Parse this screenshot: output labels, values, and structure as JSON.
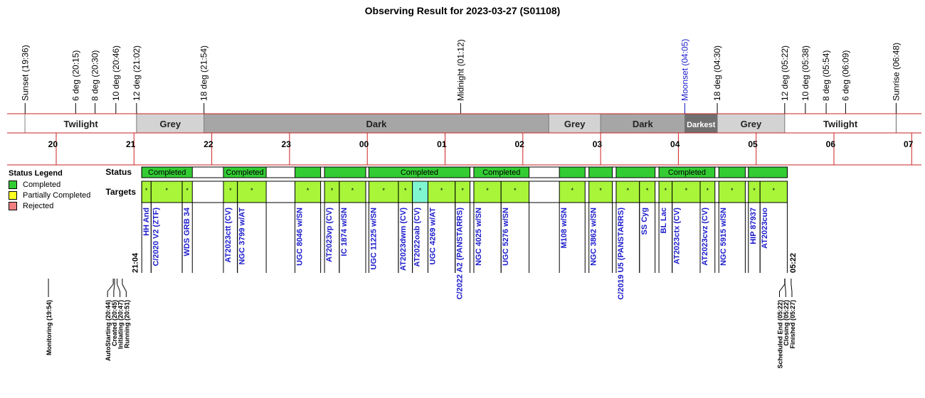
{
  "title": "Observing Result for 2023-03-27 (S01108)",
  "colors": {
    "moon": "#1a1acc",
    "red_line": "#cc2222",
    "grey": "#d3d3d3",
    "dark": "#a6a6a6",
    "darkest": "#707070",
    "completed": "#33cc33",
    "target_green": "#a8f53a",
    "target_cyan": "#7ff5d0",
    "partial": "#ffff22",
    "rejected": "#f08080",
    "target_text": "#1a1acc"
  },
  "events": [
    {
      "label": "Sunset (19:36)",
      "t": 19.6
    },
    {
      "label": "6 deg (20:15)",
      "t": 20.25
    },
    {
      "label": "8 deg (20:30)",
      "t": 20.5
    },
    {
      "label": "10 deg (20:46)",
      "t": 20.767
    },
    {
      "label": "12 deg (21:02)",
      "t": 21.033
    },
    {
      "label": "18 deg (21:54)",
      "t": 21.9
    },
    {
      "label": "Midnight (01:12)",
      "t": 25.2
    },
    {
      "label": "Moonset (04:05)",
      "t": 28.083,
      "moon": true
    },
    {
      "label": "18 deg (04:30)",
      "t": 28.5
    },
    {
      "label": "12 deg (05:22)",
      "t": 29.367
    },
    {
      "label": "10 deg (05:38)",
      "t": 29.633
    },
    {
      "label": "8 deg (05:54)",
      "t": 29.9
    },
    {
      "label": "6 deg (06:09)",
      "t": 30.15
    },
    {
      "label": "Sunrise (06:48)",
      "t": 30.8
    }
  ],
  "phases": [
    {
      "label": "Twilight",
      "t0": 19.6,
      "t1": 21.033,
      "kind": "twilight"
    },
    {
      "label": "Grey",
      "t0": 21.033,
      "t1": 21.9,
      "kind": "grey"
    },
    {
      "label": "Dark",
      "t0": 21.9,
      "t1": 26.333,
      "kind": "dark"
    },
    {
      "label": "Grey",
      "t0": 26.333,
      "t1": 27.0,
      "kind": "grey"
    },
    {
      "label": "Dark",
      "t0": 27.0,
      "t1": 28.083,
      "kind": "dark"
    },
    {
      "label": "Darkest",
      "t0": 28.083,
      "t1": 28.5,
      "kind": "darkest"
    },
    {
      "label": "Grey",
      "t0": 28.5,
      "t1": 29.367,
      "kind": "grey"
    },
    {
      "label": "Twilight",
      "t0": 29.367,
      "t1": 30.8,
      "kind": "twilight"
    }
  ],
  "hours": [
    {
      "label": "20",
      "t": 20
    },
    {
      "label": "21",
      "t": 21
    },
    {
      "label": "22",
      "t": 22
    },
    {
      "label": "23",
      "t": 23
    },
    {
      "label": "00",
      "t": 24
    },
    {
      "label": "01",
      "t": 25
    },
    {
      "label": "02",
      "t": 26
    },
    {
      "label": "03",
      "t": 27
    },
    {
      "label": "04",
      "t": 28
    },
    {
      "label": "05",
      "t": 29
    },
    {
      "label": "06",
      "t": 30
    },
    {
      "label": "07",
      "t": 31
    }
  ],
  "row_labels": {
    "status": "Status",
    "targets": "Targets"
  },
  "status_blocks": [
    {
      "t0": 21.1,
      "t1": 21.75,
      "label": "Completed"
    },
    {
      "t0": 22.15,
      "t1": 22.7,
      "label": "Completed"
    },
    {
      "t0": 23.07,
      "t1": 23.4,
      "label": ""
    },
    {
      "t0": 23.45,
      "t1": 23.98,
      "label": ""
    },
    {
      "t0": 24.02,
      "t1": 25.32,
      "label": "Completed"
    },
    {
      "t0": 25.37,
      "t1": 26.08,
      "label": "Completed"
    },
    {
      "t0": 26.47,
      "t1": 26.8,
      "label": ""
    },
    {
      "t0": 26.85,
      "t1": 27.15,
      "label": ""
    },
    {
      "t0": 27.2,
      "t1": 27.7,
      "label": ""
    },
    {
      "t0": 27.75,
      "t1": 28.47,
      "label": "Completed"
    },
    {
      "t0": 28.52,
      "t1": 28.86,
      "label": ""
    },
    {
      "t0": 28.9,
      "t1": 29.4,
      "label": ""
    }
  ],
  "targets": [
    {
      "name": "HH And",
      "t0": 21.1,
      "t1": 21.22
    },
    {
      "name": "C/2020 V2 (ZTF)",
      "t0": 21.22,
      "t1": 21.62
    },
    {
      "name": "WDS GRB 34",
      "t0": 21.62,
      "t1": 21.75
    },
    {
      "name": "AT2023ctt (CV)",
      "t0": 22.15,
      "t1": 22.33
    },
    {
      "name": "NGC 3799 w/AT",
      "t0": 22.33,
      "t1": 22.7
    },
    {
      "name": "UGC 8046 w/SN",
      "t0": 23.07,
      "t1": 23.4
    },
    {
      "name": "AT2023vp (CV)",
      "t0": 23.45,
      "t1": 23.64
    },
    {
      "name": "IC 1874 w/SN",
      "t0": 23.64,
      "t1": 23.98
    },
    {
      "name": "UGC 11225 w/SN",
      "t0": 24.02,
      "t1": 24.4
    },
    {
      "name": "AT2023dwm (CV)",
      "t0": 24.4,
      "t1": 24.58
    },
    {
      "name": "AT2022oab (CV)",
      "t0": 24.58,
      "t1": 24.78,
      "cyan": true
    },
    {
      "name": "UGC 4269 w/AT",
      "t0": 24.78,
      "t1": 25.13
    },
    {
      "name": "C/2022 A2 (PANSTARRS)",
      "t0": 25.13,
      "t1": 25.32
    },
    {
      "name": "NGC 4025 w/SN",
      "t0": 25.37,
      "t1": 25.72
    },
    {
      "name": "UGC 5276 w/SN",
      "t0": 25.72,
      "t1": 26.08
    },
    {
      "name": "M108 w/SN",
      "t0": 26.47,
      "t1": 26.8
    },
    {
      "name": "NGC 3862 w/SN",
      "t0": 26.85,
      "t1": 27.15
    },
    {
      "name": "C/2019 U5 (PANSTARRS)",
      "t0": 27.2,
      "t1": 27.5
    },
    {
      "name": "SS Cyg",
      "t0": 27.5,
      "t1": 27.7
    },
    {
      "name": "BL Lac",
      "t0": 27.75,
      "t1": 27.92
    },
    {
      "name": "AT2023ctx (CV)",
      "t0": 27.92,
      "t1": 28.28
    },
    {
      "name": "AT2023cvz (CV)",
      "t0": 28.28,
      "t1": 28.47
    },
    {
      "name": "NGC 5915 w/SN",
      "t0": 28.52,
      "t1": 28.86
    },
    {
      "name": "HIP 87937",
      "t0": 28.9,
      "t1": 29.05
    },
    {
      "name": "AT2023cuo",
      "t0": 29.05,
      "t1": 29.4
    }
  ],
  "window": {
    "start_label": "21:04",
    "start_t": 21.067,
    "end_label": "05:22",
    "end_t": 29.367
  },
  "bottom_events": [
    {
      "label": "Monitoring (19:54)",
      "t": 19.9,
      "tx": 19.9
    },
    {
      "label": "AutoStarting (20:44)",
      "t": 20.733,
      "tx": 20.66
    },
    {
      "label": "Created (20:45)",
      "t": 20.75,
      "tx": 20.74
    },
    {
      "label": "Initiating (20:47)",
      "t": 20.783,
      "tx": 20.82
    },
    {
      "label": "Running (20:51)",
      "t": 20.85,
      "tx": 20.9
    },
    {
      "label": "Scheduled End (05:22)",
      "t": 29.367,
      "tx": 29.3
    },
    {
      "label": "Closing (05:22)",
      "t": 29.37,
      "tx": 29.38
    },
    {
      "label": "Finished (05:27)",
      "t": 29.45,
      "tx": 29.46
    }
  ],
  "legend": {
    "title": "Status Legend",
    "items": [
      {
        "label": "Completed",
        "color": "#33cc33"
      },
      {
        "label": "Partially Completed",
        "color": "#ffff22"
      },
      {
        "label": "Rejected",
        "color": "#f08080"
      }
    ]
  }
}
